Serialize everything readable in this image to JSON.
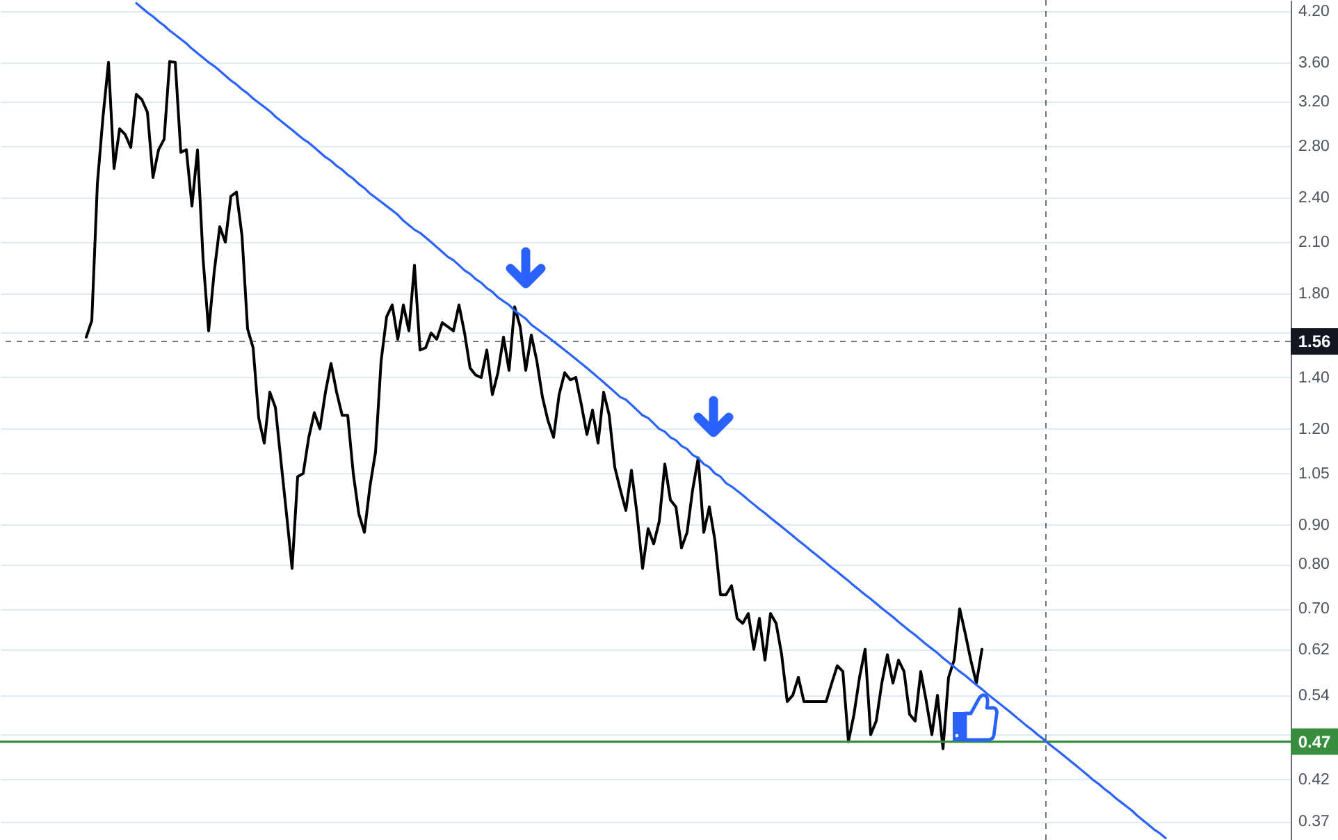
{
  "chart_data": {
    "type": "line",
    "categories": [
      null,
      null,
      null,
      null,
      null,
      null,
      null,
      null,
      null,
      null,
      null,
      null,
      null,
      null,
      null,
      null,
      null,
      null,
      null,
      null,
      null,
      null,
      null,
      null,
      null,
      null,
      null,
      null,
      null,
      null,
      null,
      null,
      null,
      null,
      null,
      null,
      null,
      null,
      null,
      null,
      null,
      null,
      null,
      null,
      null,
      null,
      null,
      null,
      null,
      null,
      null,
      null,
      null,
      null,
      null,
      null,
      null,
      null,
      null,
      null,
      null,
      null,
      null,
      null,
      null,
      null,
      null,
      null,
      null,
      null,
      null,
      null,
      null,
      null,
      null,
      null,
      null,
      null,
      null,
      null,
      null,
      null,
      null,
      null,
      null,
      null,
      null,
      null,
      null,
      null,
      null,
      null,
      null,
      null,
      null,
      null,
      null,
      null,
      null,
      null,
      null,
      null,
      null,
      null,
      null,
      null,
      null,
      null,
      null,
      null,
      null,
      null,
      null,
      null,
      null,
      null,
      null,
      null,
      null,
      null,
      null,
      null,
      null,
      null,
      null,
      null,
      null,
      null,
      null,
      null,
      null,
      null,
      null,
      null,
      null,
      null,
      null,
      null,
      null,
      null,
      null,
      null,
      null,
      null,
      null,
      null,
      null,
      null,
      null,
      null,
      null,
      null,
      null,
      null,
      null,
      null,
      null,
      null,
      null,
      null,
      null,
      null,
      null,
      null,
      null,
      null,
      null,
      null,
      null,
      null,
      null,
      null,
      null,
      null,
      null,
      null,
      null,
      null,
      null,
      null,
      null,
      null,
      null,
      null,
      null,
      null,
      null,
      null,
      null,
      null,
      null,
      null,
      null,
      null,
      null,
      null,
      null,
      null,
      null,
      null,
      null,
      null,
      null,
      null,
      null,
      null,
      null,
      null,
      null,
      null,
      null,
      null,
      null,
      null,
      null,
      null,
      null,
      null,
      null,
      null,
      null,
      null,
      null,
      null,
      null,
      null,
      null,
      null,
      null,
      null,
      null,
      null
    ],
    "series": [
      {
        "color": "#000000",
        "values": [
          null,
          null,
          null,
          null,
          null,
          null,
          null,
          null,
          null,
          null,
          null,
          null,
          null,
          null,
          null,
          1.58,
          1.66,
          2.5,
          3.05,
          3.6,
          2.62,
          2.95,
          2.9,
          2.79,
          3.27,
          3.22,
          3.1,
          2.55,
          2.77,
          2.86,
          3.61,
          3.6,
          2.75,
          2.77,
          2.34,
          2.77,
          2.0,
          1.61,
          1.92,
          2.2,
          2.1,
          2.41,
          2.44,
          2.14,
          1.62,
          1.53,
          1.24,
          1.15,
          1.34,
          1.28,
          1.09,
          0.93,
          0.79,
          1.04,
          1.05,
          1.17,
          1.26,
          1.2,
          1.34,
          1.46,
          1.34,
          1.25,
          1.25,
          1.05,
          0.93,
          0.88,
          1.01,
          1.12,
          1.47,
          1.68,
          1.74,
          1.57,
          1.74,
          1.61,
          1.96,
          1.52,
          1.53,
          1.6,
          1.57,
          1.65,
          1.63,
          1.61,
          1.74,
          1.6,
          1.44,
          1.41,
          1.4,
          1.52,
          1.33,
          1.42,
          1.58,
          1.43,
          1.73,
          1.63,
          1.43,
          1.59,
          1.47,
          1.32,
          1.23,
          1.17,
          1.33,
          1.42,
          1.39,
          1.4,
          1.29,
          1.18,
          1.27,
          1.15,
          1.34,
          1.25,
          1.07,
          1.0,
          0.94,
          1.06,
          0.93,
          0.79,
          0.89,
          0.85,
          0.91,
          1.08,
          0.97,
          0.95,
          0.84,
          0.88,
          1.0,
          1.1,
          0.88,
          0.95,
          0.86,
          0.73,
          0.73,
          0.75,
          0.68,
          0.67,
          0.69,
          0.62,
          0.68,
          0.6,
          0.69,
          0.67,
          0.61,
          0.53,
          0.54,
          0.57,
          0.53,
          0.53,
          0.53,
          0.53,
          0.53,
          0.56,
          0.59,
          0.58,
          0.47,
          0.51,
          0.57,
          0.62,
          0.48,
          0.5,
          0.56,
          0.61,
          0.56,
          0.6,
          0.58,
          0.51,
          0.5,
          0.58,
          0.53,
          0.48,
          0.54,
          0.46,
          0.57,
          0.6,
          0.7,
          0.65,
          0.6,
          0.56,
          0.62,
          null,
          null,
          null,
          null,
          null,
          null,
          null,
          null,
          null,
          null,
          null,
          null,
          null,
          null,
          null,
          null,
          null,
          null,
          null,
          null,
          null,
          null,
          null,
          null,
          null,
          null,
          null,
          null,
          null,
          null,
          null,
          null,
          null,
          null,
          null,
          null,
          null,
          null,
          null,
          null,
          null,
          null,
          null,
          null,
          null,
          null,
          null,
          null,
          null,
          null,
          null,
          null,
          null,
          null,
          null
        ]
      },
      {
        "type": "line",
        "color": "#2962ff",
        "values": [
          null,
          null,
          null,
          null,
          null,
          null,
          null,
          null,
          null,
          null,
          null,
          null,
          null,
          null,
          null,
          null,
          null,
          null,
          null,
          null,
          null,
          null,
          null,
          null,
          4.3,
          4.24,
          4.18,
          4.13,
          4.07,
          4.02,
          3.96,
          3.91,
          3.86,
          3.81,
          3.75,
          3.7,
          3.65,
          3.6,
          3.56,
          3.51,
          3.46,
          3.41,
          3.37,
          3.32,
          3.28,
          3.23,
          3.19,
          3.15,
          3.11,
          3.06,
          3.02,
          2.98,
          2.94,
          2.9,
          2.86,
          2.83,
          2.79,
          2.75,
          2.71,
          2.68,
          2.64,
          2.61,
          2.57,
          2.54,
          2.5,
          2.47,
          2.43,
          2.4,
          2.37,
          2.34,
          2.31,
          2.28,
          2.24,
          2.21,
          2.18,
          2.16,
          2.13,
          2.1,
          2.07,
          2.04,
          2.01,
          1.99,
          1.96,
          1.93,
          1.91,
          1.88,
          1.86,
          1.83,
          1.81,
          1.78,
          1.76,
          1.74,
          1.71,
          1.69,
          1.67,
          1.64,
          1.62,
          1.6,
          1.58,
          1.56,
          1.54,
          1.52,
          1.5,
          1.48,
          1.46,
          1.44,
          1.42,
          1.4,
          1.38,
          1.36,
          1.34,
          1.32,
          1.31,
          1.29,
          1.27,
          1.25,
          1.24,
          1.22,
          1.2,
          1.19,
          1.17,
          1.16,
          1.14,
          1.13,
          1.11,
          1.1,
          1.08,
          1.07,
          1.05,
          1.04,
          1.02,
          1.01,
          0.997,
          0.984,
          0.97,
          0.957,
          0.944,
          0.932,
          0.919,
          0.907,
          0.895,
          0.883,
          0.871,
          0.859,
          0.848,
          0.836,
          0.825,
          0.814,
          0.803,
          0.792,
          0.782,
          0.771,
          0.761,
          0.75,
          0.74,
          0.73,
          0.721,
          0.711,
          0.701,
          0.692,
          0.683,
          0.673,
          0.664,
          0.655,
          0.647,
          0.638,
          0.629,
          0.621,
          0.613,
          0.604,
          0.596,
          0.588,
          0.58,
          0.573,
          0.565,
          0.557,
          0.55,
          0.542,
          0.535,
          0.528,
          0.521,
          0.514,
          0.507,
          0.5,
          0.493,
          0.487,
          0.48,
          0.474,
          0.467,
          0.461,
          0.455,
          0.449,
          0.443,
          0.437,
          0.431,
          0.425,
          0.419,
          0.414,
          0.408,
          0.403,
          0.397,
          0.392,
          0.387,
          0.382,
          0.376,
          0.371,
          0.366,
          0.361,
          0.357,
          0.352,
          null,
          null,
          null,
          null,
          null,
          null,
          null,
          null,
          null,
          null,
          null,
          null,
          null,
          null,
          null,
          null,
          null,
          null,
          null,
          null,
          null,
          null
        ]
      }
    ],
    "ylim": [
      0.35,
      4.34
    ],
    "yticks": [
      {
        "value": 4.2,
        "label": "4.20"
      },
      {
        "value": 3.6,
        "label": "3.60"
      },
      {
        "value": 3.2,
        "label": "3.20"
      },
      {
        "value": 2.8,
        "label": "2.80"
      },
      {
        "value": 2.4,
        "label": "2.40"
      },
      {
        "value": 2.1,
        "label": "2.10"
      },
      {
        "value": 1.8,
        "label": "1.80"
      },
      {
        "value": 1.6,
        "label": null
      },
      {
        "value": 1.4,
        "label": "1.40"
      },
      {
        "value": 1.2,
        "label": "1.20"
      },
      {
        "value": 1.05,
        "label": "1.05"
      },
      {
        "value": 0.9,
        "label": "0.90"
      },
      {
        "value": 0.8,
        "label": "0.80"
      },
      {
        "value": 0.7,
        "label": "0.70"
      },
      {
        "value": 0.62,
        "label": "0.62"
      },
      {
        "value": 0.54,
        "label": "0.54"
      },
      {
        "value": 0.48,
        "label": null
      },
      {
        "value": 0.42,
        "label": "0.42"
      },
      {
        "value": 0.37,
        "label": "0.37"
      }
    ],
    "log": true,
    "grid": "y",
    "tick_labels": "y",
    "ref_lines": [
      {
        "axis": "y",
        "value": 1.56,
        "label": "1.56",
        "color": "#131722",
        "line_style": "dashed"
      },
      {
        "axis": "y",
        "value": 0.47,
        "label": "0.47",
        "color": "#388e3c"
      }
    ]
  }
}
